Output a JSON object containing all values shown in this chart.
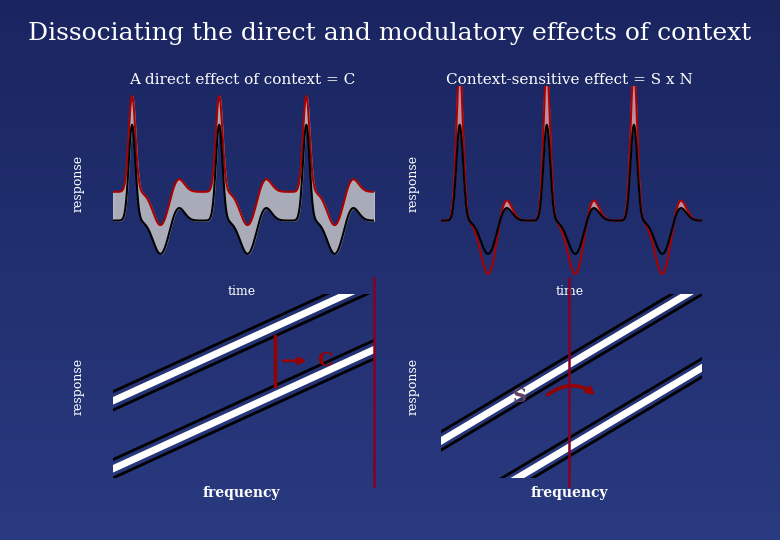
{
  "title": "Dissociating the direct and modulatory effects of context",
  "title_fontsize": 18,
  "title_color": "#ffffff",
  "bg_color_bottom": "#1a2560",
  "bg_color_top": "#2a3a80",
  "panel1_label": "A direct effect of context = C",
  "panel2_label": "Context-sensitive effect = S x N",
  "response_label": "response",
  "time_label": "time",
  "frequency_label": "frequency",
  "label_C": "C",
  "label_S": "S",
  "teal_color": "#00b5a0",
  "line_black": "#000000",
  "line_red": "#aa0000",
  "fill_gray": "#cccccc",
  "fill_pink": "#ffbbbb",
  "red_line_color": "#880022",
  "c_arrow_color": "#990000",
  "s_label_color": "#664466"
}
